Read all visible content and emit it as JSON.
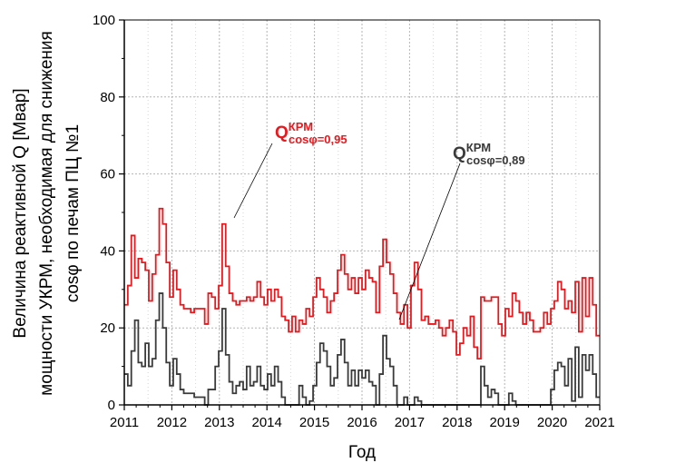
{
  "chart_data": {
    "type": "line",
    "title": "",
    "xlabel": "Год",
    "ylabel_lines": [
      "Величина реактивной Q [Мвар]",
      "мощности УКРМ, необходимая для снижения",
      "cosφ по печам ПЦ №1"
    ],
    "xlim": [
      2011,
      2021
    ],
    "ylim": [
      0,
      100
    ],
    "x_ticks": [
      2011,
      2012,
      2013,
      2014,
      2015,
      2016,
      2017,
      2018,
      2019,
      2020,
      2021
    ],
    "x_tick_labels": [
      "2011",
      "2012",
      "2013",
      "2014",
      "2015",
      "2016",
      "2017",
      "2018",
      "2019",
      "2020",
      "2021"
    ],
    "y_ticks": [
      0,
      20,
      40,
      60,
      80,
      100
    ],
    "y_tick_labels": [
      "0",
      "20",
      "40",
      "60",
      "80",
      "100"
    ],
    "grid": true,
    "step": "monthly",
    "series": [
      {
        "label_main": "Q",
        "label_sup": "КРМ",
        "label_sub": "cosφ=0,95",
        "color": "#e8191e",
        "values": [
          26,
          31,
          44,
          33,
          38,
          37,
          35,
          27,
          34,
          39,
          51,
          47,
          37,
          28,
          35,
          30,
          26,
          25,
          25,
          24,
          25,
          25,
          25,
          21,
          29,
          28,
          25,
          31,
          47,
          36,
          29,
          27,
          26,
          27,
          27,
          28,
          27,
          28,
          32,
          28,
          26,
          30,
          27,
          30,
          28,
          23,
          22,
          19,
          23,
          19,
          22,
          21,
          25,
          23,
          28,
          33,
          30,
          28,
          24,
          27,
          29,
          35,
          39,
          34,
          30,
          33,
          29,
          33,
          30,
          35,
          33,
          32,
          24,
          36,
          43,
          37,
          34,
          29,
          24,
          21,
          26,
          20,
          31,
          37,
          30,
          22,
          23,
          21,
          21,
          22,
          20,
          18,
          20,
          22,
          19,
          13,
          16,
          20,
          18,
          23,
          15,
          12,
          28,
          27,
          27,
          28,
          28,
          21,
          18,
          25,
          23,
          29,
          27,
          24,
          21,
          24,
          22,
          19,
          19,
          20,
          24,
          21,
          25,
          27,
          32,
          30,
          25,
          27,
          24,
          32,
          19,
          33,
          23,
          33,
          26,
          18
        ]
      },
      {
        "label_main": "Q",
        "label_sup": "КРМ",
        "label_sub": "cosφ=0,89",
        "color": "#3a3a3a",
        "values": [
          8,
          5,
          14,
          22,
          11,
          10,
          16,
          10,
          12,
          22,
          29,
          20,
          11,
          5,
          12,
          8,
          4,
          3,
          3,
          3,
          2,
          2,
          2,
          0,
          4,
          4,
          10,
          14,
          25,
          13,
          6,
          3,
          5,
          6,
          4,
          10,
          5,
          6,
          10,
          5,
          4,
          8,
          5,
          10,
          6,
          2,
          0,
          0,
          0,
          0,
          5,
          2,
          0,
          1,
          5,
          11,
          16,
          14,
          10,
          5,
          7,
          13,
          17,
          11,
          5,
          9,
          5,
          9,
          7,
          9,
          6,
          5,
          0,
          8,
          18,
          12,
          10,
          5,
          0,
          0,
          2,
          0,
          0,
          2,
          1,
          0,
          0,
          0,
          0,
          0,
          0,
          0,
          0,
          0,
          0,
          0,
          0,
          0,
          0,
          0,
          0,
          0,
          10,
          5,
          2,
          4,
          3,
          0,
          0,
          0,
          3,
          1,
          0,
          0,
          0,
          0,
          0,
          0,
          0,
          0,
          0,
          0,
          4,
          9,
          11,
          10,
          5,
          12,
          1,
          15,
          2,
          13,
          9,
          13,
          8,
          2
        ]
      }
    ]
  }
}
